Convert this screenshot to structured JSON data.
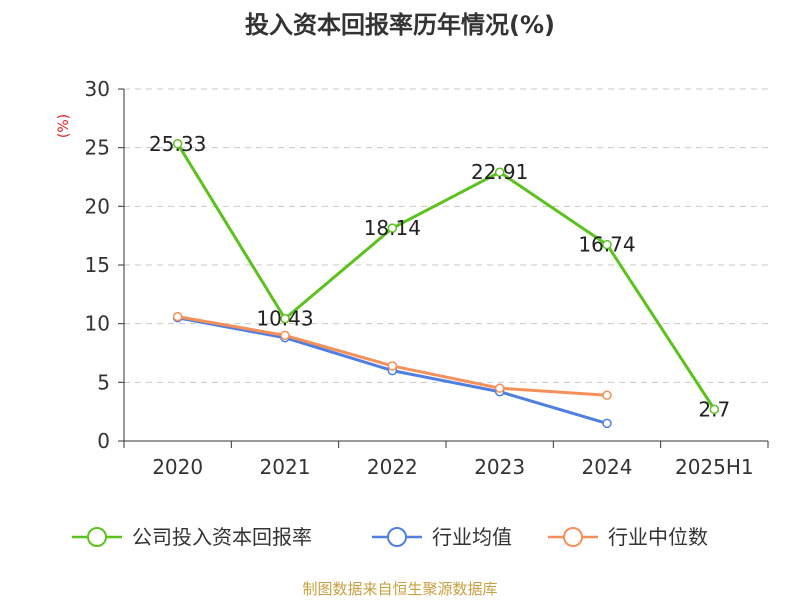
{
  "chart_data": {
    "type": "line",
    "title": "投入资本回报率历年情况(%)",
    "ylabel": "(%)",
    "xlabel": "",
    "categories": [
      "2020",
      "2021",
      "2022",
      "2023",
      "2024",
      "2025H1"
    ],
    "ylim": [
      0,
      30
    ],
    "yticks": [
      0,
      5,
      10,
      15,
      20,
      25,
      30
    ],
    "grid": true,
    "legend_position": "bottom",
    "series": [
      {
        "name": "公司投入资本回报率",
        "color": "#5bc21e",
        "values": [
          25.33,
          10.43,
          18.14,
          22.91,
          16.74,
          2.7
        ],
        "labels": [
          "25.33",
          "10.43",
          "18.14",
          "22.91",
          "16.74",
          "2.7"
        ]
      },
      {
        "name": "行业均值",
        "color": "#4f7fe0",
        "values": [
          10.5,
          8.8,
          6.0,
          4.2,
          1.5,
          null
        ]
      },
      {
        "name": "行业中位数",
        "color": "#f5905a",
        "values": [
          10.6,
          9.0,
          6.4,
          4.5,
          3.9,
          null
        ]
      }
    ]
  },
  "source": "制图数据来自恒生聚源数据库"
}
